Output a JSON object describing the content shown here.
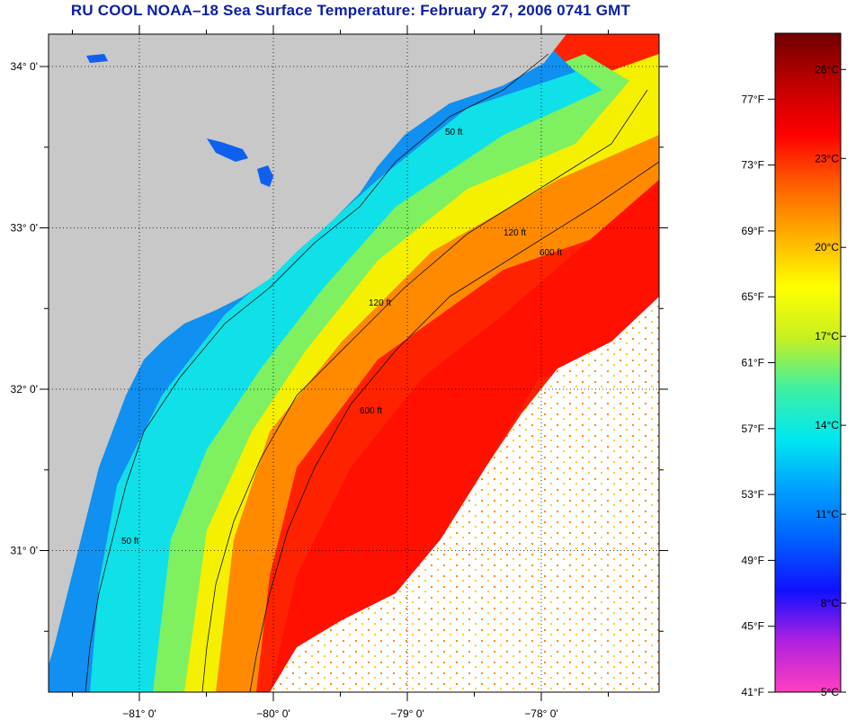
{
  "title": "RU COOL  NOAA–18  Sea Surface Temperature:  February 27, 2006 0741 GMT",
  "colors": {
    "land": "#c8c8c8",
    "cloud": "#ffffff",
    "title": "#0b1ea8"
  },
  "axes": {
    "lat_labels": [
      {
        "text": "34° 0'",
        "lat": 34.0
      },
      {
        "text": "33° 0'",
        "lat": 33.0
      },
      {
        "text": "32° 0'",
        "lat": 32.0
      },
      {
        "text": "31° 0'",
        "lat": 31.0
      }
    ],
    "lon_labels": [
      {
        "text": "−81° 0'",
        "lon": -81.0
      },
      {
        "text": "−80° 0'",
        "lon": -80.0
      },
      {
        "text": "−79° 0'",
        "lon": -79.0
      },
      {
        "text": "−78° 0'",
        "lon": -78.0
      }
    ]
  },
  "contour_labels": [
    "50 ft",
    "120 ft",
    "600 ft"
  ],
  "colorbar": {
    "fahrenheit": [
      "77°F",
      "73°F",
      "69°F",
      "65°F",
      "61°F",
      "57°F",
      "53°F",
      "49°F",
      "45°F",
      "41°F"
    ],
    "celsius": [
      "26°C",
      "23°C",
      "20°C",
      "17°C",
      "14°C",
      "11°C",
      "8°C",
      "5°C"
    ],
    "stops": [
      "#ff40c0",
      "#b020e0",
      "#1010ff",
      "#0060ff",
      "#00a0ff",
      "#00e8f0",
      "#40f0a0",
      "#c8f020",
      "#ffff00",
      "#ffb000",
      "#ff6000",
      "#ff0000",
      "#c00000",
      "#700000"
    ]
  }
}
